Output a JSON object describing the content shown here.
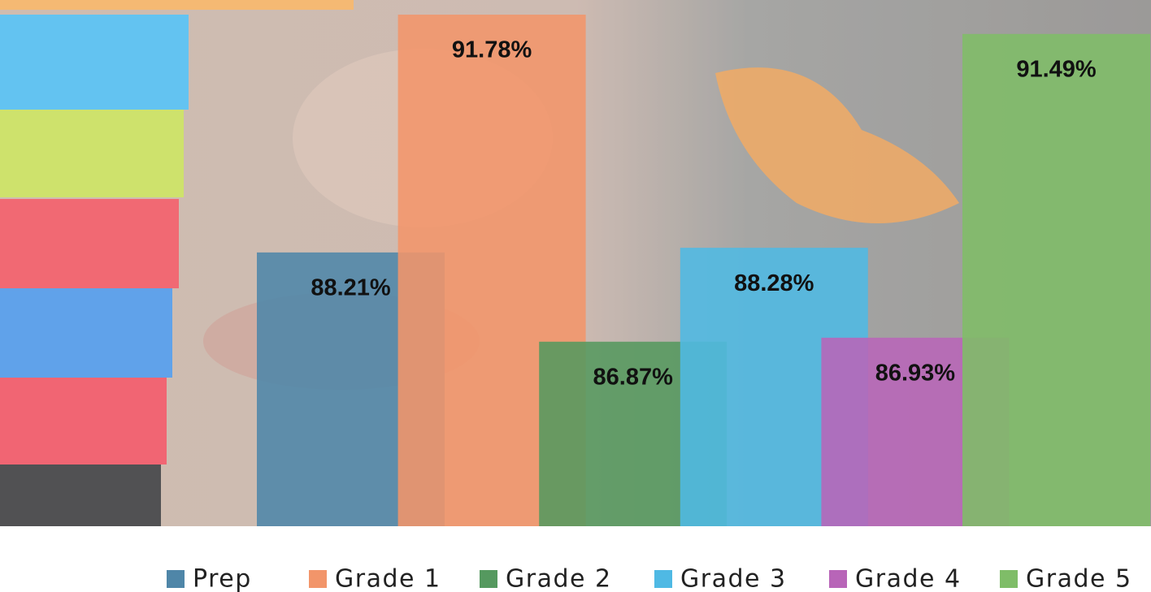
{
  "chart_data": {
    "type": "bar",
    "ylim": [
      84.1,
      92
    ],
    "legend": "bottom",
    "series": [
      {
        "name": "Prep",
        "color": "#4f86a8",
        "values": [
          88.21
        ],
        "value_labels": [
          "88.21%"
        ]
      },
      {
        "name": "Grade 1",
        "color": "#f2956a",
        "values": [
          91.78
        ],
        "value_labels": [
          "91.78%"
        ]
      },
      {
        "name": "Grade 2",
        "color": "#55995f",
        "values": [
          86.87
        ],
        "value_labels": [
          "86.87%"
        ]
      },
      {
        "name": "Grade 3",
        "color": "#4fb9e4",
        "values": [
          88.28
        ],
        "value_labels": [
          "88.28%"
        ]
      },
      {
        "name": "Grade 4",
        "color": "#b865b8",
        "values": [
          86.93
        ],
        "value_labels": [
          "86.93%"
        ]
      },
      {
        "name": "Grade 5",
        "color": "#7fbd68",
        "values": [
          91.49
        ],
        "value_labels": [
          "91.49%"
        ]
      }
    ]
  }
}
